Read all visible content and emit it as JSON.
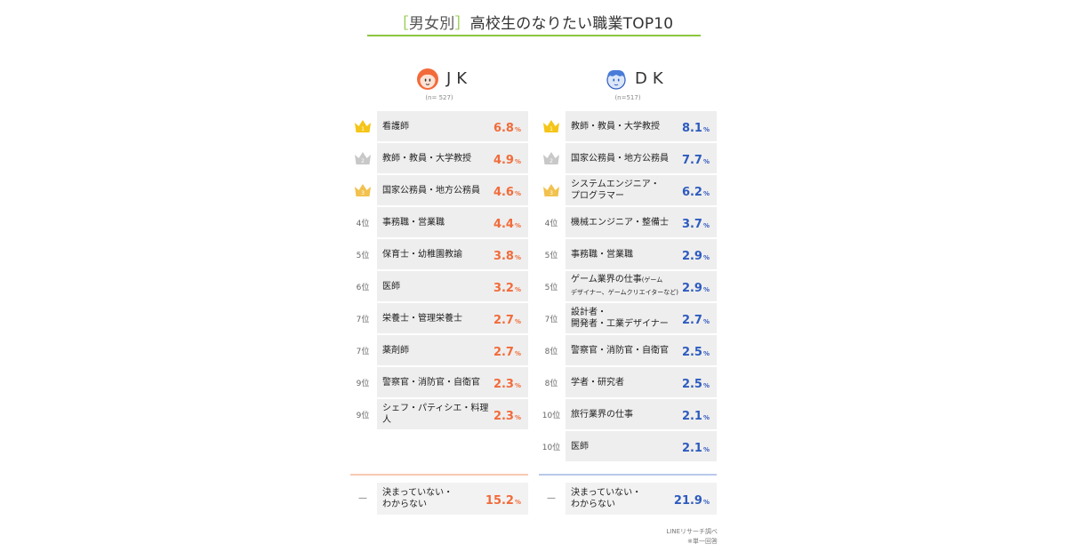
{
  "title": {
    "bracket_open": "［",
    "tag": "男女別",
    "bracket_close": "］",
    "main": "高校生のなりたい職業TOP10"
  },
  "colors": {
    "accent": "#8cc63f",
    "jk": "#f26b3a",
    "dk": "#2e5bbf",
    "gold": "#f5c518",
    "silver": "#c8c8c8",
    "bronze": "#f2c14e"
  },
  "jk": {
    "label": "JK",
    "sample": "(n= 527)",
    "icon": "girl-face-icon",
    "rows": [
      {
        "rank": "1",
        "job": "看護師",
        "sub": "",
        "value": "6.8",
        "unit": "%",
        "medal": "gold"
      },
      {
        "rank": "2",
        "job": "教師・教員・大学教授",
        "sub": "",
        "value": "4.9",
        "unit": "%",
        "medal": "silver"
      },
      {
        "rank": "3",
        "job": "国家公務員・地方公務員",
        "sub": "",
        "value": "4.6",
        "unit": "%",
        "medal": "bronze"
      },
      {
        "rank": "4位",
        "job": "事務職・営業職",
        "sub": "",
        "value": "4.4",
        "unit": "%",
        "medal": ""
      },
      {
        "rank": "5位",
        "job": "保育士・幼稚園教諭",
        "sub": "",
        "value": "3.8",
        "unit": "%",
        "medal": ""
      },
      {
        "rank": "6位",
        "job": "医師",
        "sub": "",
        "value": "3.2",
        "unit": "%",
        "medal": ""
      },
      {
        "rank": "7位",
        "job": "栄養士・管理栄養士",
        "sub": "",
        "value": "2.7",
        "unit": "%",
        "medal": ""
      },
      {
        "rank": "7位",
        "job": "薬剤師",
        "sub": "",
        "value": "2.7",
        "unit": "%",
        "medal": ""
      },
      {
        "rank": "9位",
        "job": "警察官・消防官・自衛官",
        "sub": "",
        "value": "2.3",
        "unit": "%",
        "medal": ""
      },
      {
        "rank": "9位",
        "job": "シェフ・パティシエ・料理人",
        "sub": "",
        "value": "2.3",
        "unit": "%",
        "medal": ""
      }
    ],
    "other": {
      "rank": "—",
      "job": "決まっていない・\nわからない",
      "value": "15.2",
      "unit": "%"
    }
  },
  "dk": {
    "label": "DK",
    "sample": "(n=517)",
    "icon": "boy-face-icon",
    "rows": [
      {
        "rank": "1",
        "job": "教師・教員・大学教授",
        "sub": "",
        "value": "8.1",
        "unit": "%",
        "medal": "gold"
      },
      {
        "rank": "2",
        "job": "国家公務員・地方公務員",
        "sub": "",
        "value": "7.7",
        "unit": "%",
        "medal": "silver"
      },
      {
        "rank": "3",
        "job": "システムエンジニア・\nプログラマー",
        "sub": "",
        "value": "6.2",
        "unit": "%",
        "medal": "bronze"
      },
      {
        "rank": "4位",
        "job": "機械エンジニア・整備士",
        "sub": "",
        "value": "3.7",
        "unit": "%",
        "medal": ""
      },
      {
        "rank": "5位",
        "job": "事務職・営業職",
        "sub": "",
        "value": "2.9",
        "unit": "%",
        "medal": ""
      },
      {
        "rank": "5位",
        "job": "ゲーム業界の仕事",
        "sub": "(ゲーム\nデザイナー、ゲームクリエイターなど)",
        "value": "2.9",
        "unit": "%",
        "medal": ""
      },
      {
        "rank": "7位",
        "job": "設計者・\n開発者・工業デザイナー",
        "sub": "",
        "value": "2.7",
        "unit": "%",
        "medal": ""
      },
      {
        "rank": "8位",
        "job": "警察官・消防官・自衛官",
        "sub": "",
        "value": "2.5",
        "unit": "%",
        "medal": ""
      },
      {
        "rank": "8位",
        "job": "学者・研究者",
        "sub": "",
        "value": "2.5",
        "unit": "%",
        "medal": ""
      },
      {
        "rank": "10位",
        "job": "旅行業界の仕事",
        "sub": "",
        "value": "2.1",
        "unit": "%",
        "medal": ""
      },
      {
        "rank": "10位",
        "job": "医師",
        "sub": "",
        "value": "2.1",
        "unit": "%",
        "medal": ""
      }
    ],
    "other": {
      "rank": "—",
      "job": "決まっていない・\nわからない",
      "value": "21.9",
      "unit": "%"
    }
  },
  "footer": {
    "source": "LINEリサーチ調べ",
    "note": "※単一回答"
  },
  "chart_data": {
    "type": "table",
    "title": "［男女別］高校生のなりたい職業TOP10",
    "unit": "%",
    "series": [
      {
        "name": "JK",
        "n": "(n= 527)",
        "categories": [
          "看護師",
          "教師・教員・大学教授",
          "国家公務員・地方公務員",
          "事務職・営業職",
          "保育士・幼稚園教諭",
          "医師",
          "栄養士・管理栄養士",
          "薬剤師",
          "警察官・消防官・自衛官",
          "シェフ・パティシエ・料理人",
          "決まっていない・わからない"
        ],
        "ranks": [
          "1",
          "2",
          "3",
          "4位",
          "5位",
          "6位",
          "7位",
          "7位",
          "9位",
          "9位",
          "—"
        ],
        "values": [
          6.8,
          4.9,
          4.6,
          4.4,
          3.8,
          3.2,
          2.7,
          2.7,
          2.3,
          2.3,
          15.2
        ]
      },
      {
        "name": "DK",
        "n": "(n=517)",
        "categories": [
          "教師・教員・大学教授",
          "国家公務員・地方公務員",
          "システムエンジニア・プログラマー",
          "機械エンジニア・整備士",
          "事務職・営業職",
          "ゲーム業界の仕事(ゲームデザイナー、ゲームクリエイターなど)",
          "設計者・開発者・工業デザイナー",
          "警察官・消防官・自衛官",
          "学者・研究者",
          "旅行業界の仕事",
          "医師",
          "決まっていない・わからない"
        ],
        "ranks": [
          "1",
          "2",
          "3",
          "4位",
          "5位",
          "5位",
          "7位",
          "8位",
          "8位",
          "10位",
          "10位",
          "—"
        ],
        "values": [
          8.1,
          7.7,
          6.2,
          3.7,
          2.9,
          2.9,
          2.7,
          2.5,
          2.5,
          2.1,
          2.1,
          21.9
        ]
      }
    ]
  }
}
